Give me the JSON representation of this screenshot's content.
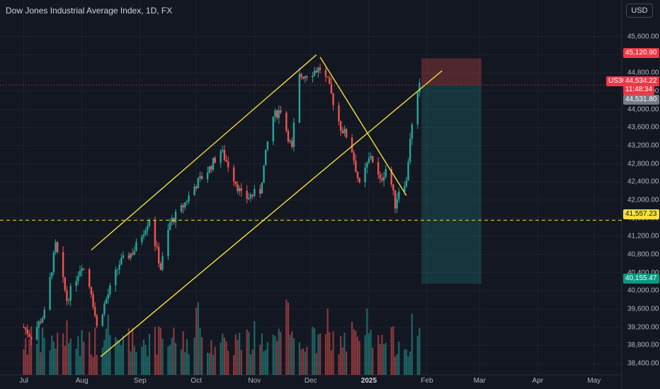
{
  "header": {
    "title": "Dow Jones Industrial Average Index, 1D, FX",
    "currency_button": "USD"
  },
  "chart_data": {
    "type": "candlestick",
    "title": "Dow Jones Industrial Average Index, 1D, FX",
    "ylim": [
      38150,
      46050
    ],
    "y_ticks": [
      "45,600.00",
      "45,200.00",
      "44,800.00",
      "44,400.00",
      "44,000.00",
      "43,600.00",
      "43,200.00",
      "42,800.00",
      "42,400.00",
      "42,000.00",
      "41,600.00",
      "41,200.00",
      "40,800.00",
      "40,400.00",
      "40,000.00",
      "39,600.00",
      "39,200.00",
      "38,800.00",
      "38,400.00"
    ],
    "y_tick_values": [
      45600,
      45200,
      44800,
      44400,
      44000,
      43600,
      43200,
      42800,
      42400,
      42000,
      41600,
      41200,
      40800,
      40400,
      40000,
      39600,
      39200,
      38800,
      38400
    ],
    "x_ticks": [
      {
        "label": "Jul",
        "day": 1
      },
      {
        "label": "Aug",
        "day": 32
      },
      {
        "label": "Sep",
        "day": 63
      },
      {
        "label": "Oct",
        "day": 93
      },
      {
        "label": "Nov",
        "day": 124
      },
      {
        "label": "Dec",
        "day": 154
      },
      {
        "label": "2025",
        "day": 185
      },
      {
        "label": "Feb",
        "day": 216
      },
      {
        "label": "Mar",
        "day": 244
      },
      {
        "label": "Apr",
        "day": 275
      },
      {
        "label": "May",
        "day": 305
      }
    ],
    "price_path": [
      [
        1,
        39200
      ],
      [
        5,
        39000
      ],
      [
        12,
        39500
      ],
      [
        18,
        41000
      ],
      [
        24,
        39800
      ],
      [
        32,
        40600
      ],
      [
        37,
        40000
      ],
      [
        40,
        39200
      ],
      [
        44,
        39700
      ],
      [
        52,
        40600
      ],
      [
        60,
        40900
      ],
      [
        68,
        41600
      ],
      [
        74,
        40500
      ],
      [
        79,
        41500
      ],
      [
        85,
        41800
      ],
      [
        92,
        42300
      ],
      [
        100,
        42700
      ],
      [
        106,
        43100
      ],
      [
        111,
        42700
      ],
      [
        118,
        42000
      ],
      [
        122,
        42100
      ],
      [
        127,
        42200
      ],
      [
        133,
        43800
      ],
      [
        138,
        44000
      ],
      [
        144,
        43100
      ],
      [
        147,
        44700
      ],
      [
        153,
        44800
      ],
      [
        159,
        44900
      ],
      [
        163,
        44600
      ],
      [
        170,
        43600
      ],
      [
        175,
        43300
      ],
      [
        180,
        42300
      ],
      [
        186,
        43000
      ],
      [
        191,
        42400
      ],
      [
        195,
        42800
      ],
      [
        199,
        41900
      ],
      [
        202,
        42400
      ],
      [
        205,
        42400
      ],
      [
        207,
        43400
      ],
      [
        212,
        44500
      ]
    ],
    "resistance_line": {
      "start_day": 37,
      "start": 40900,
      "end_day": 157,
      "end": 45200
    },
    "support_line": {
      "start_day": 42,
      "start": 38550,
      "end_day": 224,
      "end": 44850
    },
    "down_trendline": {
      "start_day": 159,
      "start": 45150,
      "end_day": 205,
      "end": 42100
    },
    "horizontal_level": 41557.23,
    "current_price": 44534.22,
    "trade": {
      "start_day": 213,
      "end_day": 245,
      "entry": 44531.8,
      "stop": 45120.9,
      "target": 40155.47
    },
    "volume_colors": {
      "up": "#26a69a",
      "down": "#ef5350"
    }
  },
  "price_labels": {
    "stop": "45,120.90",
    "symbol": "US30",
    "current": "44,534.22",
    "countdown": "11:48:34",
    "entry": "44,531.80",
    "level": "41,557.23",
    "target": "40,155.47"
  },
  "colors": {
    "background": "#131722",
    "up": "#26a69a",
    "down": "#ef5350",
    "trendline": "#f5e13d",
    "stop_zone": "#5b2a33",
    "target_zone": "#17403d"
  }
}
